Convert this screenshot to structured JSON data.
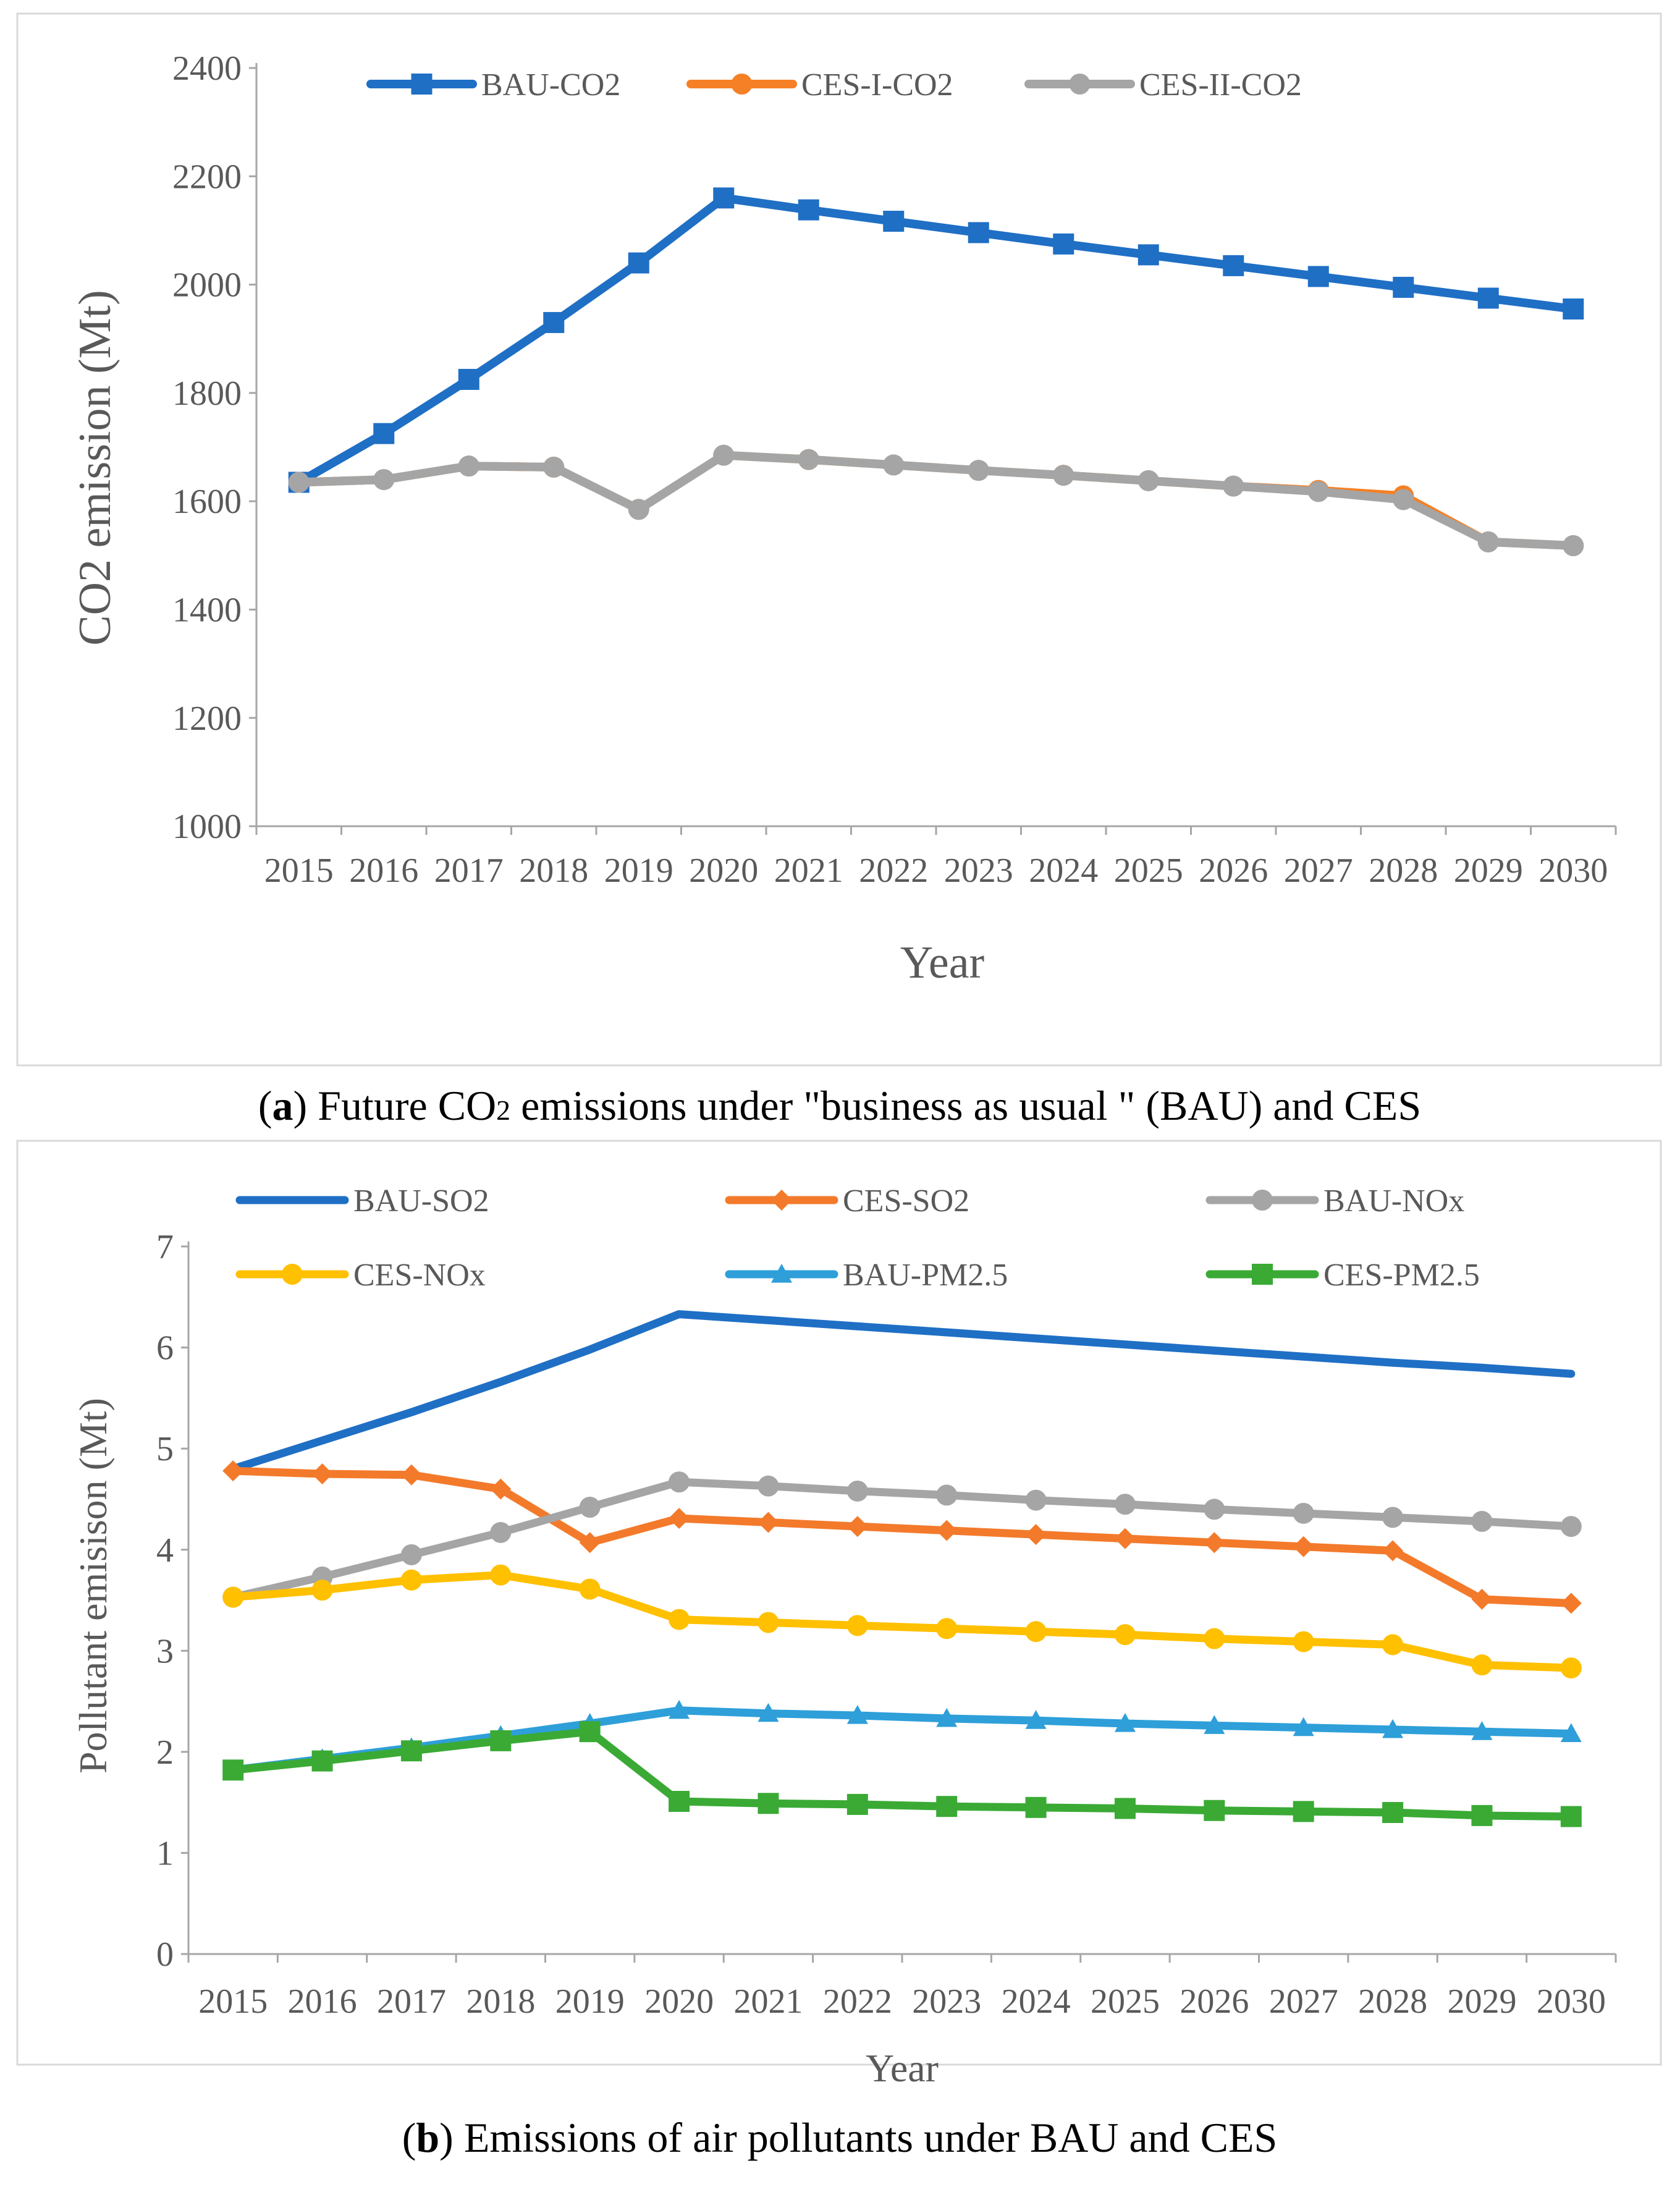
{
  "chart_data": [
    {
      "type": "line",
      "title": "",
      "xlabel": "Year",
      "ylabel": "CO2 emission (Mt)",
      "ylim": [
        1000,
        2400
      ],
      "yticks": [
        1000,
        1200,
        1400,
        1600,
        1800,
        2000,
        2200,
        2400
      ],
      "categories": [
        "2015",
        "2016",
        "2017",
        "2018",
        "2019",
        "2020",
        "2021",
        "2022",
        "2023",
        "2024",
        "2025",
        "2026",
        "2027",
        "2028",
        "2029",
        "2030"
      ],
      "legend_position": "top",
      "series": [
        {
          "name": "BAU-CO2",
          "color": "#1f6fc5",
          "marker": "square",
          "values": [
            1635,
            1725,
            1825,
            1930,
            2040,
            2160,
            2138,
            2117,
            2096,
            2075,
            2055,
            2035,
            2015,
            1995,
            1975,
            1955
          ]
        },
        {
          "name": "CES-I-CO2",
          "color": "#f58025",
          "marker": "circle",
          "values": [
            1635,
            1640,
            1665,
            1663,
            1585,
            1685,
            1677,
            1667,
            1657,
            1648,
            1638,
            1628,
            1620,
            1610,
            1525,
            1518
          ]
        },
        {
          "name": "CES-II-CO2",
          "color": "#a5a5a5",
          "marker": "circle",
          "values": [
            1635,
            1640,
            1665,
            1663,
            1585,
            1685,
            1677,
            1667,
            1657,
            1648,
            1638,
            1628,
            1618,
            1603,
            1525,
            1518
          ]
        }
      ]
    },
    {
      "type": "line",
      "title": "",
      "xlabel": "Year",
      "ylabel": "Pollutant emisison (Mt)",
      "ylim": [
        0,
        7
      ],
      "yticks": [
        0,
        1,
        2,
        3,
        4,
        5,
        6,
        7
      ],
      "categories": [
        "2015",
        "2016",
        "2017",
        "2018",
        "2019",
        "2020",
        "2021",
        "2022",
        "2023",
        "2024",
        "2025",
        "2026",
        "2027",
        "2028",
        "2029",
        "2030"
      ],
      "legend_position": "top",
      "series": [
        {
          "name": "BAU-SO2",
          "color": "#1f6fc5",
          "marker": "none",
          "values": [
            4.8,
            5.08,
            5.36,
            5.66,
            5.98,
            6.33,
            6.27,
            6.21,
            6.15,
            6.09,
            6.03,
            5.97,
            5.91,
            5.85,
            5.8,
            5.74
          ]
        },
        {
          "name": "CES-SO2",
          "color": "#f37a2b",
          "marker": "diamond",
          "values": [
            4.78,
            4.75,
            4.74,
            4.6,
            4.07,
            4.31,
            4.27,
            4.23,
            4.19,
            4.15,
            4.11,
            4.07,
            4.03,
            3.99,
            3.51,
            3.47
          ]
        },
        {
          "name": "BAU-NOx",
          "color": "#a5a5a5",
          "marker": "circle",
          "values": [
            3.53,
            3.73,
            3.95,
            4.17,
            4.42,
            4.67,
            4.63,
            4.58,
            4.54,
            4.49,
            4.45,
            4.4,
            4.36,
            4.32,
            4.28,
            4.23
          ]
        },
        {
          "name": "CES-NOx",
          "color": "#ffc000",
          "marker": "circle",
          "values": [
            3.53,
            3.6,
            3.7,
            3.75,
            3.61,
            3.31,
            3.28,
            3.25,
            3.22,
            3.19,
            3.16,
            3.12,
            3.09,
            3.06,
            2.86,
            2.83
          ]
        },
        {
          "name": "BAU-PM2.5",
          "color": "#2e9fd9",
          "marker": "triangle",
          "values": [
            1.82,
            1.93,
            2.04,
            2.16,
            2.28,
            2.41,
            2.38,
            2.36,
            2.33,
            2.31,
            2.28,
            2.26,
            2.24,
            2.22,
            2.2,
            2.18
          ]
        },
        {
          "name": "CES-PM2.5",
          "color": "#3aaa35",
          "marker": "square",
          "values": [
            1.82,
            1.91,
            2.01,
            2.11,
            2.2,
            1.51,
            1.49,
            1.48,
            1.46,
            1.45,
            1.44,
            1.42,
            1.41,
            1.4,
            1.37,
            1.36
          ]
        }
      ]
    }
  ],
  "captions": {
    "a": {
      "label": "(a)",
      "letter": "a",
      "pre": "(",
      "post": ")",
      "text_before": " Future CO",
      "subscript": "2",
      "text_after": " emissions under \"business as usual \" (BAU) and CES"
    },
    "b": {
      "label": "(b)",
      "letter": "b",
      "pre": "(",
      "post": ")",
      "text": " Emissions of air pollutants under BAU and CES"
    }
  }
}
